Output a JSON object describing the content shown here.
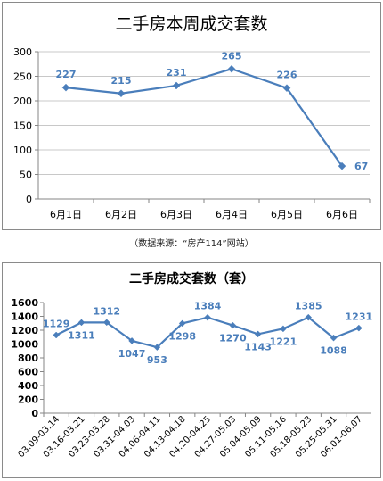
{
  "source_note": "（数据来源：“房产114”网站）",
  "colors": {
    "line": "#4a7ebb",
    "label": "#4a7ebb",
    "axis": "#868686",
    "grid": "#c8c8c8",
    "text": "#000000"
  },
  "chart_data": [
    {
      "type": "line",
      "title": "二手房本周成交套数",
      "xlabel": "",
      "ylabel": "",
      "categories": [
        "6月1日",
        "6月2日",
        "6月3日",
        "6月4日",
        "6月5日",
        "6月6日"
      ],
      "series": [
        {
          "values": [
            227,
            215,
            231,
            265,
            226,
            67
          ]
        }
      ],
      "ylim": [
        0,
        300
      ],
      "yticks": [
        0,
        50,
        100,
        150,
        200,
        250,
        300
      ],
      "grid": true,
      "data_labels": true
    },
    {
      "type": "line",
      "title": "二手房成交套数（套）",
      "xlabel": "",
      "ylabel": "",
      "categories": [
        "03.09-03.14",
        "03.16-03.21",
        "03.23-03.28",
        "03.31-04.03",
        "04.06-04.11",
        "04.13-04.18",
        "04.20-04.25",
        "04.27-05.03",
        "05.04-05.09",
        "05.11-05.16",
        "05.18-05.23",
        "05.25-05.31",
        "06.01-06.07"
      ],
      "series": [
        {
          "values": [
            1129,
            1311,
            1312,
            1047,
            953,
            1298,
            1384,
            1270,
            1143,
            1221,
            1385,
            1088,
            1231
          ]
        }
      ],
      "ylim": [
        0,
        1600
      ],
      "yticks": [
        0,
        200,
        400,
        600,
        800,
        1000,
        1200,
        1400,
        1600
      ],
      "grid": false,
      "data_labels": true
    }
  ]
}
